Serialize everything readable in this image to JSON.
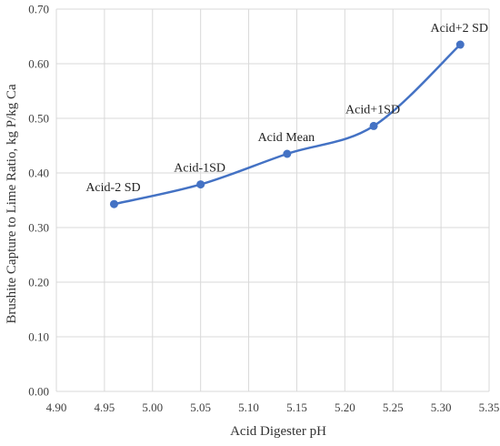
{
  "chart_data": {
    "type": "scatter",
    "xlabel": "Acid Digester pH",
    "ylabel": "Brushite Capture to Lime Ratio, kg P/kg Ca",
    "xlim": [
      4.9,
      5.35
    ],
    "ylim": [
      0,
      0.7
    ],
    "x_ticks": [
      "4.90",
      "4.95",
      "5.00",
      "5.05",
      "5.10",
      "5.15",
      "5.20",
      "5.25",
      "5.30",
      "5.35"
    ],
    "y_ticks": [
      "0.00",
      "0.10",
      "0.20",
      "0.30",
      "0.40",
      "0.50",
      "0.60",
      "0.70"
    ],
    "grid": "both",
    "line_style": "smoothed line with markers",
    "series": [
      {
        "color": "#4472c4",
        "points": [
          {
            "x": 4.96,
            "y": 0.343,
            "label": "Acid-2 SD"
          },
          {
            "x": 5.05,
            "y": 0.379,
            "label": "Acid-1SD"
          },
          {
            "x": 5.14,
            "y": 0.435,
            "label": "Acid Mean"
          },
          {
            "x": 5.23,
            "y": 0.486,
            "label": "Acid+1SD"
          },
          {
            "x": 5.32,
            "y": 0.635,
            "label": "Acid+2 SD"
          }
        ]
      }
    ]
  }
}
